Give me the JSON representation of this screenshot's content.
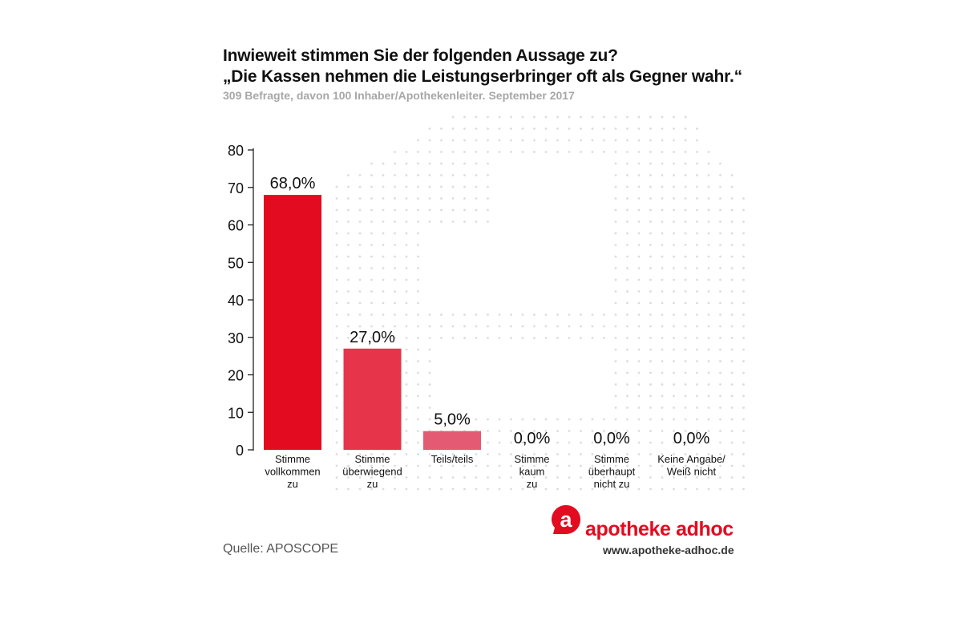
{
  "header": {
    "title_line1": "Inwieweit stimmen Sie der folgenden Aussage zu?",
    "title_line2": "„Die Kassen nehmen die Leistungserbringer oft als Gegner wahr.“",
    "subtitle": "309 Befragte, davon 100 Inhaber/Apothekenleiter. September 2017"
  },
  "chart_data": {
    "type": "bar",
    "categories": [
      [
        "Stimme",
        "vollkommen",
        "zu"
      ],
      [
        "Stimme",
        "überwiegend",
        "zu"
      ],
      [
        "Teils/teils"
      ],
      [
        "Stimme",
        "kaum",
        "zu"
      ],
      [
        "Stimme",
        "überhaupt",
        "nicht zu"
      ],
      [
        "Keine Angabe/",
        "Weiß nicht"
      ]
    ],
    "values": [
      68.0,
      27.0,
      5.0,
      0.0,
      0.0,
      0.0
    ],
    "value_labels": [
      "68,0%",
      "27,0%",
      "5,0%",
      "0,0%",
      "0,0%",
      "0,0%"
    ],
    "bar_colors": [
      "#e30b1f",
      "#e6344a",
      "#e35a72",
      "#e30b1f",
      "#e30b1f",
      "#e30b1f"
    ],
    "ylim": [
      0,
      80
    ],
    "yticks": [
      0,
      10,
      20,
      30,
      40,
      50,
      60,
      70,
      80
    ],
    "xlabel": "",
    "ylabel": "",
    "grid": false,
    "legend": "none"
  },
  "footer": {
    "source": "Quelle: APOSCOPE",
    "logo_letter": "a",
    "brand_name": "apotheke adhoc",
    "url": "www.apotheke-adhoc.de"
  },
  "colors": {
    "brand": "#e30b1f",
    "subtitle_gray": "#a7a7a7",
    "dot_pattern": "#dcdcdc"
  },
  "icons": {
    "logo": "speech-bubble-a-logo-icon"
  }
}
